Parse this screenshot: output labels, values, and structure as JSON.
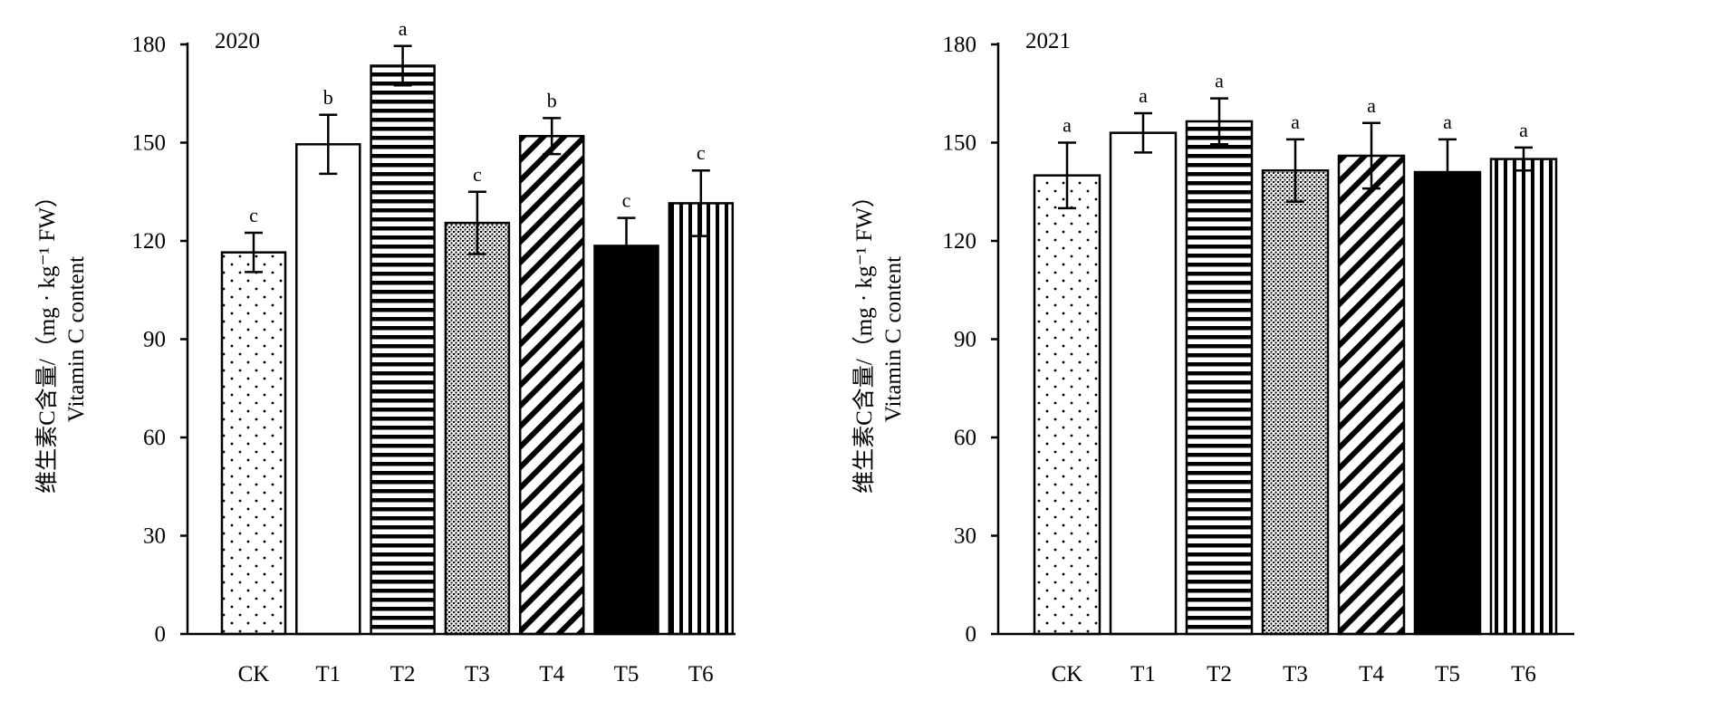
{
  "chart_data": [
    {
      "type": "bar",
      "title": "2020",
      "categories": [
        "CK",
        "T1",
        "T2",
        "T3",
        "T4",
        "T5",
        "T6"
      ],
      "values": [
        116.5,
        149.5,
        173.5,
        125.5,
        152,
        118.5,
        131.5
      ],
      "errors": [
        6,
        9,
        6,
        9.5,
        5.5,
        8.5,
        10
      ],
      "significance": [
        "c",
        "b",
        "a",
        "c",
        "b",
        "c",
        "c"
      ],
      "patterns": [
        "dots",
        "white",
        "horizontal",
        "crosshatch",
        "diagonal",
        "black",
        "vertical"
      ],
      "ylabel_cn": "维生素C含量/（mg · kg⁻¹ FW）",
      "ylabel_en": "Vitamin C content",
      "yticks": [
        "0",
        "30",
        "60",
        "90",
        "120",
        "150",
        "180"
      ],
      "ylim": [
        0,
        180
      ],
      "grid": false
    },
    {
      "type": "bar",
      "title": "2021",
      "categories": [
        "CK",
        "T1",
        "T2",
        "T3",
        "T4",
        "T5",
        "T6"
      ],
      "values": [
        140,
        153,
        156.5,
        141.5,
        146,
        141,
        145
      ],
      "errors": [
        10,
        6,
        7,
        9.5,
        10,
        10,
        3.5
      ],
      "significance": [
        "a",
        "a",
        "a",
        "a",
        "a",
        "a",
        "a"
      ],
      "patterns": [
        "dots",
        "white",
        "horizontal",
        "crosshatch",
        "diagonal",
        "black",
        "vertical"
      ],
      "ylabel_cn": "维生素C含量/（mg · kg⁻¹ FW）",
      "ylabel_en": "Vitamin C content",
      "yticks": [
        "0",
        "30",
        "60",
        "90",
        "120",
        "150",
        "180"
      ],
      "ylim": [
        0,
        180
      ],
      "grid": false
    }
  ]
}
